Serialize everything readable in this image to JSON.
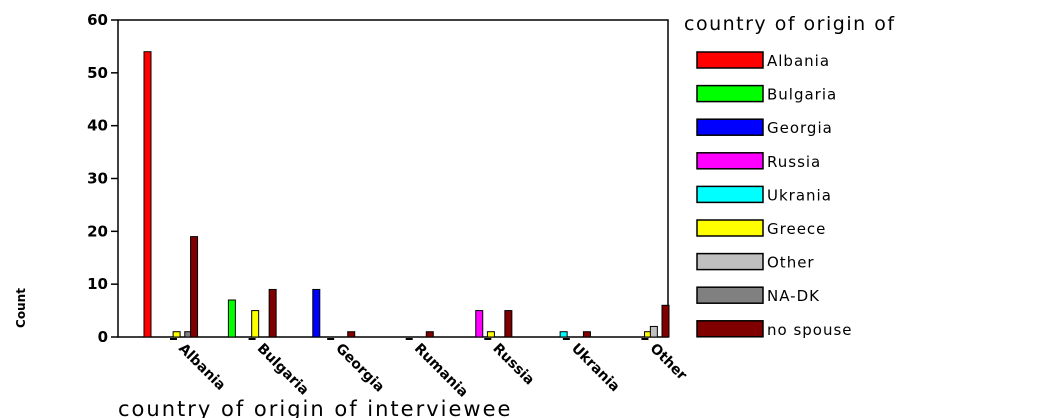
{
  "chart_data": {
    "type": "bar",
    "xlabel": "country of origin of interviewee",
    "ylabel": "Count",
    "ylim": [
      0,
      60
    ],
    "yticks": [
      0,
      10,
      20,
      30,
      40,
      50,
      60
    ],
    "grid": false,
    "legend": {
      "title": "country of origin of",
      "placement": "right",
      "entries": [
        "Albania",
        "Bulgaria",
        "Georgia",
        "Russia",
        "Ukrania",
        "Greece",
        "Other",
        "NA-DK",
        "no spouse"
      ]
    },
    "categories": [
      "Albania",
      "Bulgaria",
      "Georgia",
      "Rumania",
      "Russia",
      "Ukrania",
      "Other"
    ],
    "series": [
      {
        "name": "Albania",
        "color": "#ff0000",
        "values": [
          54,
          0,
          0,
          0,
          0,
          0,
          0
        ]
      },
      {
        "name": "Bulgaria",
        "color": "#00ff00",
        "values": [
          0,
          7,
          0,
          0,
          0,
          0,
          0
        ]
      },
      {
        "name": "Georgia",
        "color": "#0000ff",
        "values": [
          0,
          0,
          9,
          0,
          0,
          0,
          0
        ]
      },
      {
        "name": "Russia",
        "color": "#ff00ff",
        "values": [
          0,
          0,
          0,
          0,
          5,
          0,
          0
        ]
      },
      {
        "name": "Ukrania",
        "color": "#00ffff",
        "values": [
          0,
          0,
          0,
          0,
          0,
          1,
          0
        ]
      },
      {
        "name": "Greece",
        "color": "#ffff00",
        "values": [
          1,
          5,
          0,
          0,
          1,
          0,
          1
        ]
      },
      {
        "name": "Other",
        "color": "#c0c0c0",
        "values": [
          0,
          0,
          0,
          0,
          0,
          0,
          2
        ]
      },
      {
        "name": "NA-DK",
        "color": "#808080",
        "values": [
          1,
          0,
          0,
          0,
          0,
          0,
          0
        ]
      },
      {
        "name": "no spouse",
        "color": "#800000",
        "values": [
          19,
          9,
          1,
          1,
          5,
          1,
          6
        ]
      }
    ]
  }
}
